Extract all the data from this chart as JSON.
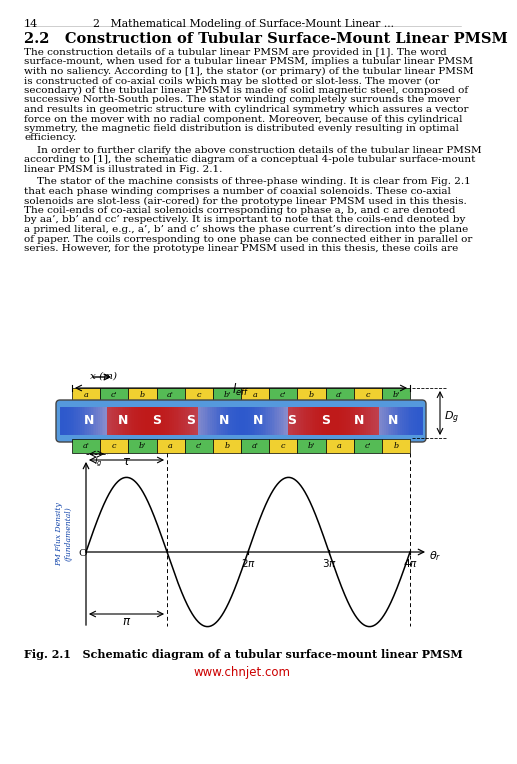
{
  "page_number": "14",
  "header_right": "2   Mathematical Modeling of Surface-Mount Linear ...",
  "section_title": "2.2   Construction of Tubular Surface-Mount Linear PMSM",
  "paragraph1": "The construction details of a tubular linear PMSM are provided in [1]. The word\nsurface-mount, when used for a tubular linear PMSM, implies a tubular linear PMSM\nwith no saliency. According to [1], the stator (or primary) of the tubular linear PMSM\nis constructed of co-axial coils which may be slotted or slot-less. The mover (or\nsecondary) of the tubular linear PMSM is made of solid magnetic steel, composed of\nsuccessive North-South poles. The stator winding completely surrounds the mover\nand results in geometric structure with cylindrical symmetry which assures a vector\nforce on the mover with no radial component. Moreover, because of this cylindrical\nsymmetry, the magnetic field distribution is distributed evenly resulting in optimal\nefficiency.",
  "paragraph2": "    In order to further clarify the above construction details of the tubular linear PMSM\naccording to [1], the schematic diagram of a conceptual 4-pole tubular surface-mount\nlinear PMSM is illustrated in Fig. 2.1.",
  "paragraph3": "    The stator of the machine consists of three-phase winding. It is clear from Fig. 2.1\nthat each phase winding comprises a number of coaxial solenoids. These co-axial\nsolenoids are slot-less (air-cored) for the prototype linear PMSM used in this thesis.\nThe coil-ends of co-axial solenoids corresponding to phase a, b, and c are denoted\nby aa’, bb’ and cc’ respectively. It is important to note that the coils-end denoted by\na primed literal, e.g., a’, b’ and c’ shows the phase current’s direction into the plane\nof paper. The coils corresponding to one phase can be connected either in parallel or\nseries. However, for the prototype linear PMSM used in this thesis, these coils are",
  "fig_caption": "Fig. 2.1   Schematic diagram of a tubular surface-mount linear PMSM",
  "watermark": "www.chnjet.com",
  "top_coil_labels": [
    "a",
    "c'",
    "b",
    "a'",
    "c",
    "b'",
    "a",
    "c'",
    "b",
    "a'",
    "c",
    "b'"
  ],
  "bottom_coil_labels": [
    "a'",
    "c",
    "b'",
    "a",
    "c'",
    "b",
    "a'",
    "c",
    "b'",
    "a",
    "c'",
    "b"
  ],
  "magnet_labels": [
    "N",
    "N",
    "S",
    "S",
    "N",
    "N",
    "S",
    "S",
    "N",
    "N"
  ],
  "background_color": "#ffffff"
}
